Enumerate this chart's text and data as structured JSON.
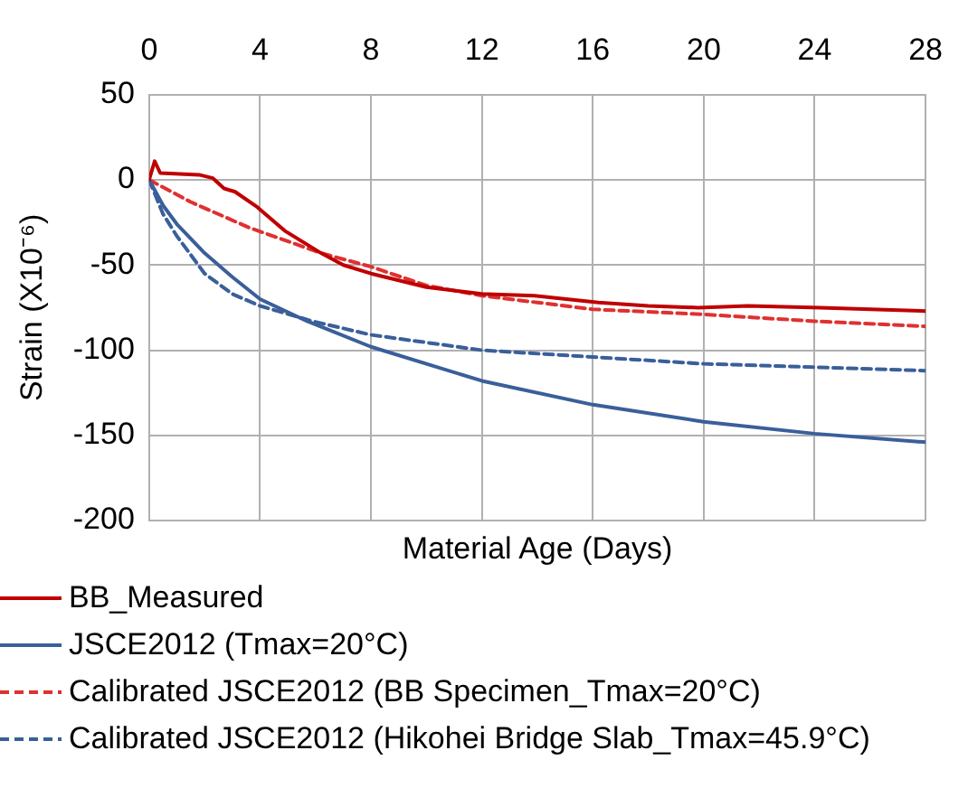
{
  "chart_data": {
    "type": "line",
    "xlabel": "Material Age (Days)",
    "ylabel": "Strain (X10⁻⁶)",
    "xlim": [
      0,
      28
    ],
    "xticks": [
      0,
      4,
      8,
      12,
      16,
      20,
      24,
      28
    ],
    "ylim": [
      -200,
      50
    ],
    "yticks": [
      -200,
      -150,
      -100,
      -50,
      0,
      50
    ],
    "grid": true,
    "legend": "bottom",
    "marker": "none",
    "series": [
      {
        "name": "BB_Measured",
        "color": "#c00000",
        "line_style": "solid",
        "x": [
          0,
          0.2,
          0.4,
          1.8,
          2.3,
          2.7,
          3.1,
          3.9,
          4.9,
          6.2,
          7,
          8,
          10,
          12,
          13.9,
          16.2,
          18,
          19.8,
          21.6,
          24.2,
          28
        ],
        "values": [
          0,
          11,
          4,
          3,
          1,
          -5,
          -7,
          -16,
          -30,
          -43,
          -50,
          -55,
          -63,
          -67,
          -68,
          -72,
          -74,
          -75,
          -74,
          -75,
          -77
        ]
      },
      {
        "name": "JSCE2012 (Tmax=20°C)",
        "color": "#3a5f9a",
        "line_style": "solid",
        "x": [
          0,
          0.5,
          1,
          2,
          3,
          4,
          5.7,
          8,
          12,
          16,
          20,
          24,
          28
        ],
        "values": [
          0,
          -15,
          -26,
          -43,
          -57,
          -70,
          -83,
          -98,
          -118,
          -132,
          -142,
          -149,
          -154
        ]
      },
      {
        "name": "Calibrated JSCE2012 (BB Specimen_Tmax=20°C)",
        "color": "#e03030",
        "line_style": "dashed",
        "x": [
          0,
          1.5,
          3.6,
          6.2,
          8,
          10,
          12,
          14,
          16,
          20,
          24,
          28
        ],
        "values": [
          0,
          -13,
          -28,
          -43,
          -51,
          -62,
          -68,
          -72,
          -76,
          -79,
          -83,
          -86
        ]
      },
      {
        "name": "Calibrated JSCE2012 (Hikohei Bridge Slab_Tmax=45.9°C)",
        "color": "#3a5f9a",
        "line_style": "dashed",
        "x": [
          0,
          0.5,
          1,
          2,
          3,
          4,
          5.9,
          8,
          12,
          16,
          20,
          24,
          28
        ],
        "values": [
          0,
          -20,
          -33,
          -55,
          -67,
          -74,
          -83,
          -91,
          -100,
          -104,
          -108,
          -110,
          -112
        ]
      }
    ]
  }
}
